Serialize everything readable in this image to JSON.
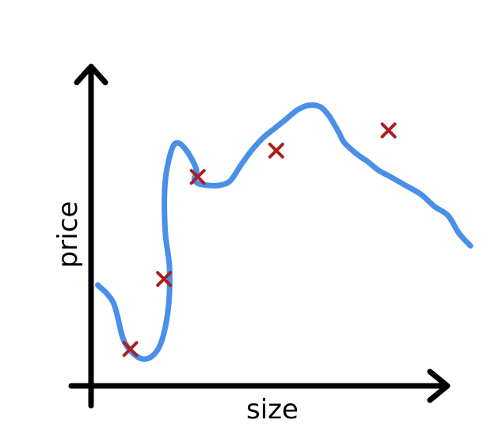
{
  "chart_data": {
    "type": "line",
    "title": "",
    "xlabel": "size",
    "ylabel": "price",
    "x_ticks": false,
    "y_ticks": false,
    "grid": false,
    "legend": "none",
    "colors": {
      "axes": "#000000",
      "curve": "#4a8fe8",
      "markers": "#a82020"
    },
    "series": [
      {
        "kind": "curve",
        "x": [
          0.3,
          1.0,
          1.5,
          2.3,
          3.0,
          3.4,
          3.5,
          3.3,
          3.3,
          3.6,
          3.9,
          4.3,
          4.6,
          4.7,
          4.6,
          4.8,
          5.2,
          5.7,
          6.2,
          6.7,
          7.2,
          7.7,
          8.2,
          8.7,
          9.2,
          9.7,
          10.2,
          10.6,
          11.0,
          11.3,
          11.9,
          12.3,
          12.8,
          13.3,
          14.0,
          14.7,
          15.3,
          15.9,
          16.4,
          16.9
        ],
        "y": [
          2.5,
          1.9,
          0.6,
          0.05,
          0.4,
          1.5,
          3.0,
          4.3,
          5.9,
          7.0,
          7.2,
          6.9,
          6.5,
          6.25,
          6.0,
          5.85,
          5.8,
          5.8,
          5.95,
          6.5,
          7.0,
          7.4,
          7.7,
          8.0,
          8.3,
          8.45,
          8.4,
          8.1,
          7.6,
          7.2,
          6.8,
          6.6,
          6.3,
          6.1,
          5.8,
          5.5,
          5.1,
          4.8,
          4.2,
          3.8
        ]
      },
      {
        "kind": "points",
        "marker": "x",
        "x": [
          1.75,
          3.25,
          4.75,
          8.25,
          13.25
        ],
        "y": [
          0.38,
          2.7,
          6.08,
          6.95,
          7.62
        ]
      }
    ]
  }
}
